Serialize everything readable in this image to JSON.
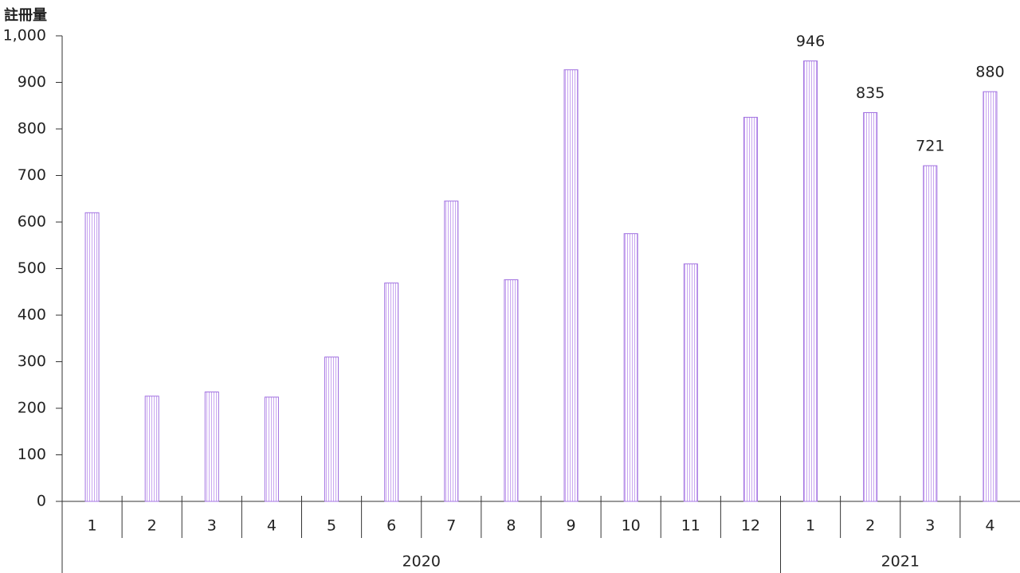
{
  "chart_data": {
    "type": "bar",
    "y_axis_title": "註冊量",
    "category_groups": [
      {
        "name": "2020",
        "categories": [
          "1",
          "2",
          "3",
          "4",
          "5",
          "6",
          "7",
          "8",
          "9",
          "10",
          "11",
          "12"
        ]
      },
      {
        "name": "2021",
        "categories": [
          "1",
          "2",
          "3",
          "4"
        ]
      }
    ],
    "values": [
      620,
      226,
      235,
      224,
      310,
      469,
      645,
      476,
      927,
      575,
      510,
      825,
      946,
      835,
      721,
      880
    ],
    "value_labels": [
      null,
      null,
      null,
      null,
      null,
      null,
      null,
      null,
      null,
      null,
      null,
      null,
      "946",
      "835",
      "721",
      "880"
    ],
    "color": "#a070e0",
    "ylim": [
      0,
      1000
    ],
    "yticks": [
      0,
      100,
      200,
      300,
      400,
      500,
      600,
      700,
      800,
      900,
      {
        "value": 1000,
        "label": "1,000"
      }
    ],
    "grid": false
  }
}
